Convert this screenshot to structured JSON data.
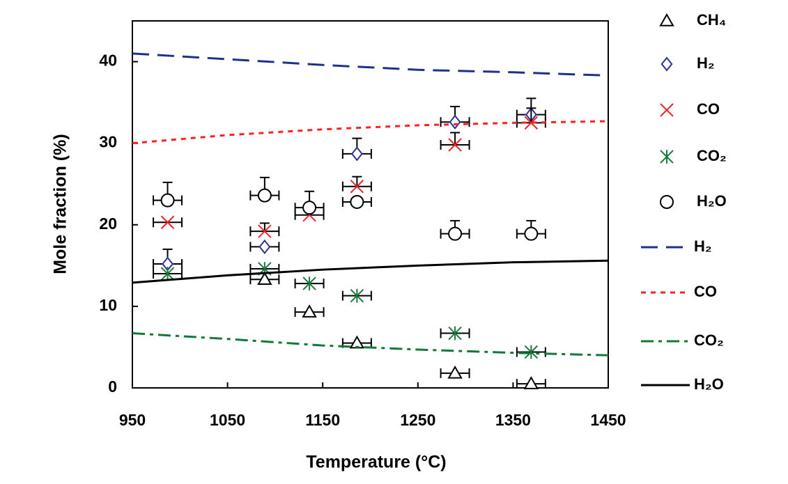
{
  "chart_data": {
    "type": "scatter",
    "xlabel": "Temperature (°C)",
    "ylabel": "Mole fraction (%)",
    "xlim": [
      950,
      1450
    ],
    "xticks": [
      950,
      1050,
      1150,
      1250,
      1350,
      1450
    ],
    "ylim": [
      0,
      45
    ],
    "yticks": [
      0,
      10,
      20,
      30,
      40
    ],
    "grid": false,
    "series": [
      {
        "name": "CH₄",
        "type": "scatter",
        "marker": "triangle",
        "color": "#000000",
        "x": [
          987,
          1089,
          1136,
          1186,
          1289,
          1369
        ],
        "values": [
          null,
          13.3,
          9.3,
          5.5,
          1.8,
          0.5
        ],
        "xerr": 15,
        "yerr": [
          null,
          null,
          null,
          null,
          null,
          null
        ]
      },
      {
        "name": "H₂",
        "type": "scatter",
        "marker": "diamond",
        "color": "#2e3192",
        "x": [
          987,
          1089,
          1136,
          1186,
          1289,
          1369
        ],
        "values": [
          15.2,
          17.3,
          null,
          28.7,
          32.6,
          33.5
        ],
        "xerr": 15,
        "yerr": [
          1.8,
          null,
          null,
          1.9,
          1.9,
          2
        ]
      },
      {
        "name": "CO",
        "type": "scatter",
        "marker": "x",
        "color": "#e8262a",
        "x": [
          987,
          1089,
          1136,
          1186,
          1289,
          1369
        ],
        "values": [
          20.3,
          19.2,
          21.2,
          24.7,
          29.8,
          32.5
        ],
        "xerr": 15,
        "yerr": [
          null,
          1,
          1,
          1.2,
          1.5,
          1.8
        ]
      },
      {
        "name": "CO₂",
        "type": "scatter",
        "marker": "asterisk",
        "color": "#1a7a3c",
        "x": [
          987,
          1089,
          1136,
          1186,
          1289,
          1369
        ],
        "values": [
          14.0,
          14.6,
          12.8,
          11.3,
          6.7,
          4.4
        ],
        "xerr": 15,
        "yerr": [
          null,
          null,
          null,
          null,
          null,
          null
        ]
      },
      {
        "name": "H₂O",
        "type": "scatter",
        "marker": "circle",
        "color": "#000000",
        "x": [
          987,
          1089,
          1136,
          1186,
          1289,
          1369
        ],
        "values": [
          23.0,
          23.6,
          22.1,
          22.8,
          18.9,
          18.9
        ],
        "xerr": 15,
        "yerr": [
          2.2,
          2.2,
          2,
          null,
          1.6,
          1.6
        ]
      },
      {
        "name": "H₂",
        "type": "line",
        "dash": "dashed",
        "color": "#1f2f8a",
        "x": [
          950,
          1050,
          1150,
          1250,
          1350,
          1450
        ],
        "values": [
          41.0,
          40.3,
          39.6,
          39.0,
          38.7,
          38.3
        ]
      },
      {
        "name": "CO",
        "type": "line",
        "dash": "dotted",
        "color": "#ff2020",
        "x": [
          950,
          1050,
          1150,
          1250,
          1350,
          1450
        ],
        "values": [
          30.0,
          31.0,
          31.7,
          32.2,
          32.5,
          32.7
        ]
      },
      {
        "name": "CO₂",
        "type": "line",
        "dash": "dashdot",
        "color": "#0f7a35",
        "x": [
          950,
          1050,
          1150,
          1250,
          1350,
          1450
        ],
        "values": [
          6.7,
          6.0,
          5.2,
          4.7,
          4.3,
          4.0
        ]
      },
      {
        "name": "H₂O",
        "type": "line",
        "dash": "solid",
        "color": "#000000",
        "x": [
          950,
          1050,
          1150,
          1250,
          1350,
          1450
        ],
        "values": [
          12.9,
          13.8,
          14.5,
          15.0,
          15.4,
          15.6
        ]
      }
    ]
  }
}
